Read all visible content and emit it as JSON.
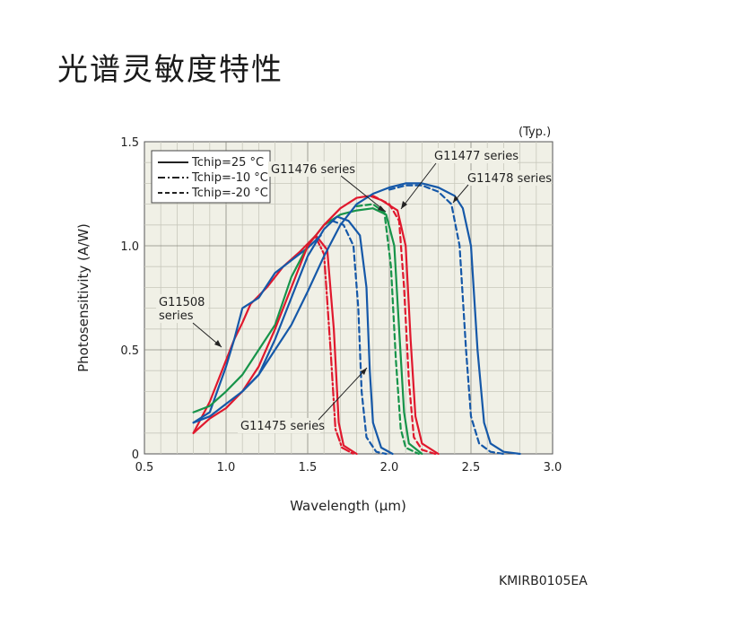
{
  "page": {
    "title": "光谱灵敏度特性",
    "code": "KMIRB0105EA"
  },
  "chart_data": {
    "type": "line",
    "typ_note": "(Typ.)",
    "xlabel": "Wavelength (μm)",
    "ylabel": "Photosensitivity (A/W)",
    "xlim": [
      0.5,
      3.0
    ],
    "ylim": [
      0,
      1.5
    ],
    "xticks": [
      "0.5",
      "1.0",
      "1.5",
      "2.0",
      "2.5",
      "3.0"
    ],
    "yticks": [
      "0",
      "0.5",
      "1.0",
      "1.5"
    ],
    "grid": true,
    "legend": {
      "placement": "top-left",
      "entries": [
        {
          "label": "Tchip=25 °C",
          "style": "solid"
        },
        {
          "label": "Tchip=-10 °C",
          "style": "dashdot"
        },
        {
          "label": "Tchip=-20 °C",
          "style": "dashed"
        }
      ]
    },
    "annotations": [
      {
        "text": "G11508",
        "text2": "series"
      },
      {
        "text": "G11476 series"
      },
      {
        "text": "G11477 series"
      },
      {
        "text": "G11478 series"
      },
      {
        "text": "G11475 series"
      }
    ],
    "colors": {
      "red": "#e0182d",
      "green": "#17944a",
      "blue": "#1558a8"
    },
    "series": [
      {
        "color": "red",
        "style": "solid",
        "points": [
          [
            0.8,
            0.1
          ],
          [
            0.9,
            0.25
          ],
          [
            1.0,
            0.45
          ],
          [
            1.05,
            0.55
          ],
          [
            1.1,
            0.63
          ],
          [
            1.15,
            0.72
          ],
          [
            1.25,
            0.8
          ],
          [
            1.35,
            0.9
          ],
          [
            1.45,
            0.97
          ],
          [
            1.55,
            1.05
          ],
          [
            1.62,
            0.98
          ],
          [
            1.66,
            0.6
          ],
          [
            1.69,
            0.15
          ],
          [
            1.72,
            0.04
          ],
          [
            1.8,
            0.0
          ]
        ]
      },
      {
        "color": "red",
        "style": "dashdot",
        "points": [
          [
            1.55,
            1.04
          ],
          [
            1.6,
            0.96
          ],
          [
            1.64,
            0.5
          ],
          [
            1.67,
            0.12
          ],
          [
            1.71,
            0.03
          ],
          [
            1.78,
            0.0
          ]
        ]
      },
      {
        "color": "blue",
        "style": "solid",
        "points": [
          [
            0.8,
            0.15
          ],
          [
            0.9,
            0.2
          ],
          [
            1.0,
            0.42
          ],
          [
            1.05,
            0.55
          ],
          [
            1.1,
            0.7
          ],
          [
            1.2,
            0.75
          ],
          [
            1.3,
            0.87
          ],
          [
            1.4,
            0.93
          ],
          [
            1.5,
            0.99
          ],
          [
            1.58,
            1.05
          ]
        ]
      },
      {
        "color": "green",
        "style": "solid",
        "points": [
          [
            0.8,
            0.2
          ],
          [
            0.9,
            0.23
          ],
          [
            1.0,
            0.3
          ],
          [
            1.1,
            0.38
          ],
          [
            1.2,
            0.5
          ],
          [
            1.3,
            0.62
          ],
          [
            1.4,
            0.85
          ],
          [
            1.5,
            1.0
          ],
          [
            1.6,
            1.1
          ],
          [
            1.7,
            1.15
          ],
          [
            1.8,
            1.17
          ],
          [
            1.9,
            1.18
          ],
          [
            1.98,
            1.15
          ],
          [
            2.03,
            1.0
          ],
          [
            2.06,
            0.6
          ],
          [
            2.09,
            0.2
          ],
          [
            2.12,
            0.05
          ],
          [
            2.2,
            0.0
          ]
        ]
      },
      {
        "color": "green",
        "style": "dashed",
        "points": [
          [
            1.8,
            1.19
          ],
          [
            1.9,
            1.2
          ],
          [
            1.97,
            1.16
          ],
          [
            2.01,
            0.9
          ],
          [
            2.04,
            0.45
          ],
          [
            2.07,
            0.12
          ],
          [
            2.1,
            0.03
          ],
          [
            2.18,
            0.0
          ]
        ]
      },
      {
        "color": "red",
        "style": "solid",
        "points": [
          [
            0.8,
            0.1
          ],
          [
            0.9,
            0.17
          ],
          [
            1.0,
            0.22
          ],
          [
            1.1,
            0.3
          ],
          [
            1.2,
            0.42
          ],
          [
            1.3,
            0.6
          ],
          [
            1.4,
            0.8
          ],
          [
            1.5,
            1.0
          ],
          [
            1.6,
            1.1
          ],
          [
            1.7,
            1.18
          ],
          [
            1.8,
            1.23
          ],
          [
            1.88,
            1.24
          ],
          [
            1.95,
            1.22
          ],
          [
            2.05,
            1.17
          ],
          [
            2.1,
            1.0
          ],
          [
            2.13,
            0.55
          ],
          [
            2.16,
            0.18
          ],
          [
            2.2,
            0.05
          ],
          [
            2.3,
            0.0
          ]
        ]
      },
      {
        "color": "red",
        "style": "dashed",
        "points": [
          [
            1.9,
            1.24
          ],
          [
            2.0,
            1.2
          ],
          [
            2.06,
            1.12
          ],
          [
            2.09,
            0.8
          ],
          [
            2.12,
            0.35
          ],
          [
            2.15,
            0.08
          ],
          [
            2.2,
            0.02
          ],
          [
            2.28,
            0.0
          ]
        ]
      },
      {
        "color": "blue",
        "style": "solid",
        "points": [
          [
            0.8,
            0.15
          ],
          [
            0.9,
            0.18
          ],
          [
            1.0,
            0.24
          ],
          [
            1.1,
            0.3
          ],
          [
            1.2,
            0.38
          ],
          [
            1.3,
            0.5
          ],
          [
            1.4,
            0.62
          ],
          [
            1.5,
            0.78
          ],
          [
            1.6,
            0.95
          ],
          [
            1.7,
            1.1
          ],
          [
            1.8,
            1.2
          ],
          [
            1.9,
            1.25
          ],
          [
            2.0,
            1.28
          ],
          [
            2.1,
            1.3
          ],
          [
            2.2,
            1.3
          ],
          [
            2.3,
            1.28
          ],
          [
            2.4,
            1.24
          ],
          [
            2.45,
            1.18
          ],
          [
            2.5,
            1.0
          ],
          [
            2.54,
            0.5
          ],
          [
            2.58,
            0.15
          ],
          [
            2.62,
            0.05
          ],
          [
            2.7,
            0.01
          ],
          [
            2.8,
            0.0
          ]
        ]
      },
      {
        "color": "blue",
        "style": "dashed",
        "points": [
          [
            2.0,
            1.27
          ],
          [
            2.1,
            1.29
          ],
          [
            2.2,
            1.29
          ],
          [
            2.3,
            1.26
          ],
          [
            2.38,
            1.2
          ],
          [
            2.43,
            1.0
          ],
          [
            2.47,
            0.5
          ],
          [
            2.5,
            0.18
          ],
          [
            2.55,
            0.05
          ],
          [
            2.62,
            0.01
          ],
          [
            2.7,
            0.0
          ]
        ]
      },
      {
        "color": "blue",
        "style": "solid",
        "points": [
          [
            1.1,
            0.3
          ],
          [
            1.2,
            0.38
          ],
          [
            1.3,
            0.55
          ],
          [
            1.4,
            0.75
          ],
          [
            1.5,
            0.95
          ],
          [
            1.6,
            1.08
          ],
          [
            1.68,
            1.14
          ],
          [
            1.75,
            1.12
          ],
          [
            1.82,
            1.05
          ],
          [
            1.86,
            0.8
          ],
          [
            1.88,
            0.4
          ],
          [
            1.9,
            0.15
          ],
          [
            1.95,
            0.03
          ],
          [
            2.02,
            0.0
          ]
        ]
      },
      {
        "color": "blue",
        "style": "dashed",
        "points": [
          [
            1.65,
            1.12
          ],
          [
            1.72,
            1.1
          ],
          [
            1.78,
            1.0
          ],
          [
            1.81,
            0.7
          ],
          [
            1.83,
            0.3
          ],
          [
            1.86,
            0.08
          ],
          [
            1.92,
            0.01
          ],
          [
            1.98,
            0.0
          ]
        ]
      }
    ]
  }
}
